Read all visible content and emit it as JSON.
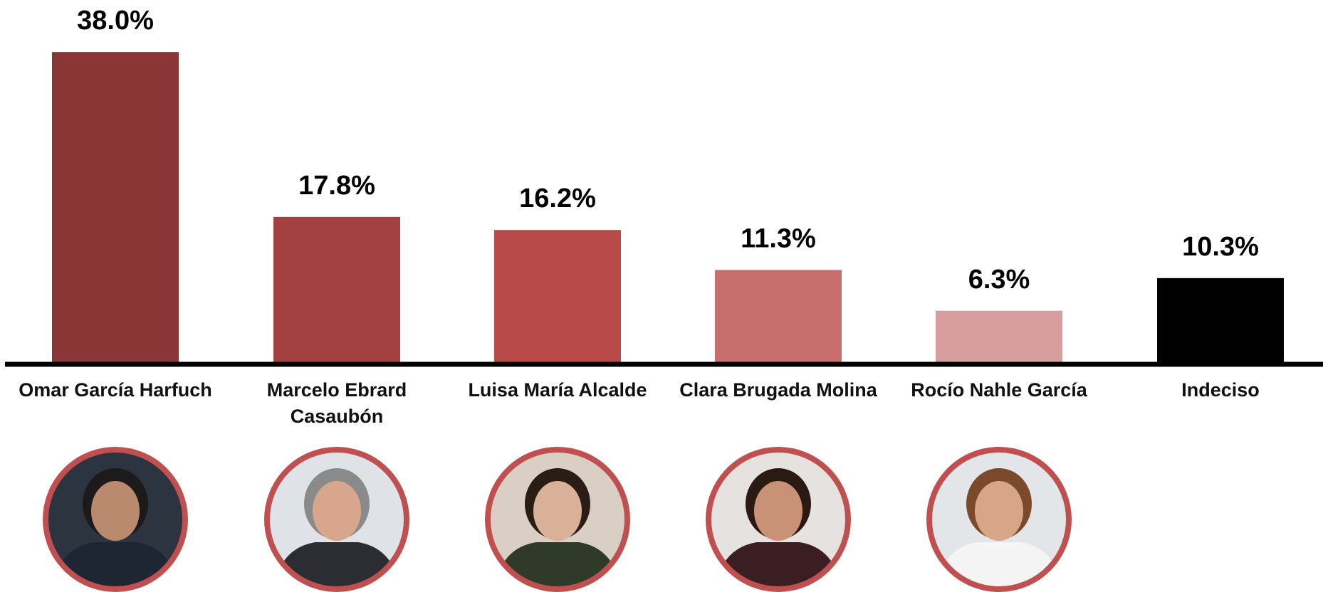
{
  "chart_data": {
    "type": "bar",
    "categories": [
      "Omar García Harfuch",
      "Marcelo Ebrard Casaubón",
      "Luisa María Alcalde",
      "Clara Brugada Molina",
      "Rocío Nahle García",
      "Indeciso"
    ],
    "values": [
      38.0,
      17.8,
      16.2,
      11.3,
      6.3,
      10.3
    ],
    "value_labels": [
      "38.0%",
      "17.8%",
      "16.2%",
      "11.3%",
      "6.3%",
      "10.3%"
    ],
    "colors": [
      "#8b3636",
      "#a34141",
      "#b84b49",
      "#c76f6d",
      "#d69d9c",
      "#000000"
    ]
  }
}
